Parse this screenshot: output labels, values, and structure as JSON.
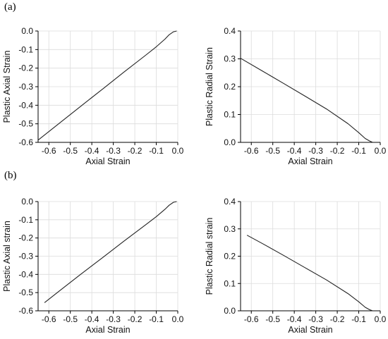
{
  "panels": {
    "a": "(a)",
    "b": "(b)"
  },
  "chart_data": [
    {
      "type": "line",
      "id": "a-left",
      "xlabel": "Axial Strain",
      "ylabel": "Plastic Axial Strain",
      "xlim": [
        -0.65,
        0.0
      ],
      "ylim": [
        -0.6,
        0.0
      ],
      "xticks": [
        "-0.6",
        "-0.5",
        "-0.4",
        "-0.3",
        "-0.2",
        "-0.1",
        "0.0"
      ],
      "yticks": [
        "-0.6",
        "-0.5",
        "-0.4",
        "-0.3",
        "-0.2",
        "-0.1",
        "0.0"
      ],
      "grid": true,
      "series": [
        {
          "x": [
            -0.65,
            -0.55,
            -0.45,
            -0.35,
            -0.25,
            -0.15,
            -0.1,
            -0.06,
            -0.04,
            -0.02,
            -0.005
          ],
          "y": [
            -0.588,
            -0.496,
            -0.404,
            -0.313,
            -0.221,
            -0.131,
            -0.085,
            -0.044,
            -0.02,
            -0.004,
            0.0
          ]
        }
      ]
    },
    {
      "type": "line",
      "id": "a-right",
      "xlabel": "Axial Strain",
      "ylabel": "Plastic Radial Strain",
      "xlim": [
        -0.65,
        0.0
      ],
      "ylim": [
        0.0,
        0.4
      ],
      "xticks": [
        "-0.6",
        "-0.5",
        "-0.4",
        "-0.3",
        "-0.2",
        "-0.1",
        "0.0"
      ],
      "yticks": [
        "0.0",
        "0.1",
        "0.2",
        "0.3",
        "0.4"
      ],
      "grid": true,
      "series": [
        {
          "x": [
            -0.65,
            -0.55,
            -0.45,
            -0.35,
            -0.25,
            -0.15,
            -0.1,
            -0.07,
            -0.05,
            -0.035
          ],
          "y": [
            0.302,
            0.257,
            0.212,
            0.166,
            0.12,
            0.067,
            0.035,
            0.014,
            0.005,
            0.0
          ]
        }
      ]
    },
    {
      "type": "line",
      "id": "b-left",
      "xlabel": "Axial Strain",
      "ylabel": "Plastic Axial strain",
      "xlim": [
        -0.65,
        0.0
      ],
      "ylim": [
        -0.6,
        0.0
      ],
      "xticks": [
        "-0.6",
        "-0.5",
        "-0.4",
        "-0.3",
        "-0.2",
        "-0.1",
        "0.0"
      ],
      "yticks": [
        "-0.6",
        "-0.5",
        "-0.4",
        "-0.3",
        "-0.2",
        "-0.1",
        "0.0"
      ],
      "grid": true,
      "series": [
        {
          "x": [
            -0.62,
            -0.55,
            -0.45,
            -0.35,
            -0.25,
            -0.15,
            -0.1,
            -0.06,
            -0.04,
            -0.02,
            -0.005
          ],
          "y": [
            -0.555,
            -0.49,
            -0.398,
            -0.308,
            -0.217,
            -0.128,
            -0.083,
            -0.043,
            -0.02,
            -0.004,
            0.0
          ]
        }
      ]
    },
    {
      "type": "line",
      "id": "b-right",
      "xlabel": "Axial Strain",
      "ylabel": "Plastic Radial strain",
      "xlim": [
        -0.65,
        0.0
      ],
      "ylim": [
        0.0,
        0.4
      ],
      "xticks": [
        "-0.6",
        "-0.5",
        "-0.4",
        "-0.3",
        "-0.2",
        "-0.1",
        "0.0"
      ],
      "yticks": [
        "0.0",
        "0.1",
        "0.2",
        "0.3",
        "0.4"
      ],
      "grid": true,
      "series": [
        {
          "x": [
            -0.62,
            -0.55,
            -0.45,
            -0.35,
            -0.25,
            -0.15,
            -0.1,
            -0.07,
            -0.05,
            -0.035
          ],
          "y": [
            0.277,
            0.247,
            0.203,
            0.158,
            0.113,
            0.063,
            0.033,
            0.013,
            0.004,
            0.0
          ]
        }
      ]
    }
  ]
}
